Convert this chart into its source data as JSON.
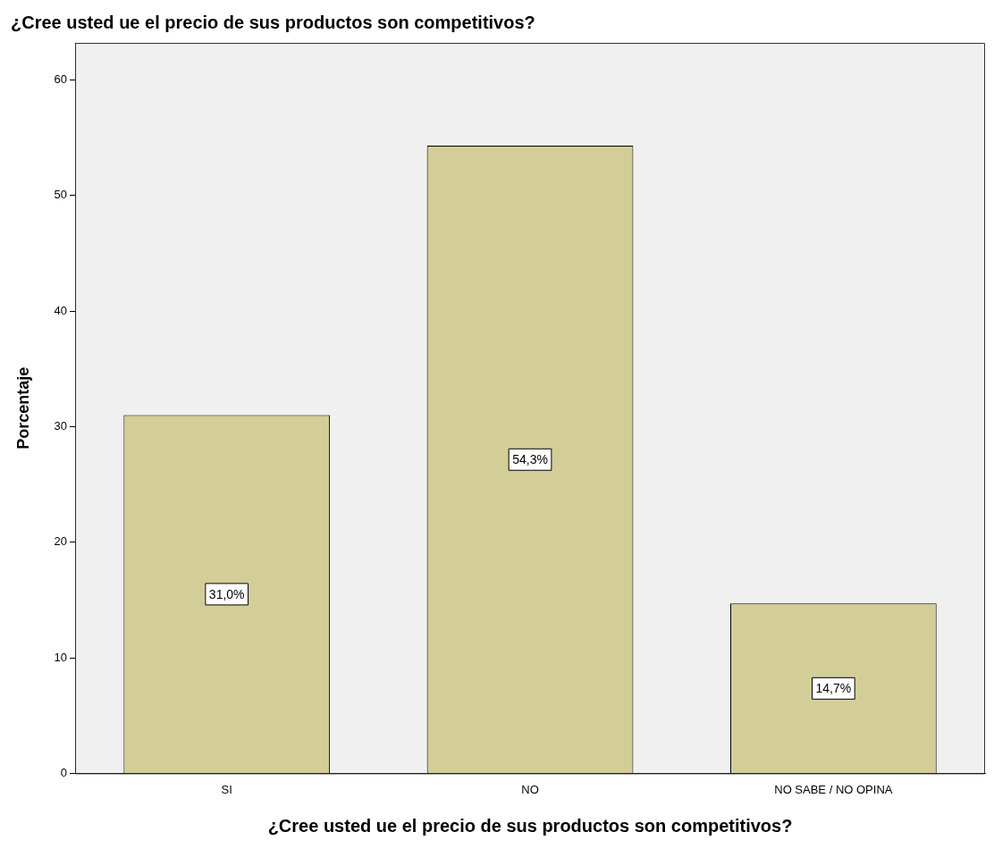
{
  "chart_data": {
    "type": "bar",
    "title": "¿Cree usted ue el precio de sus productos son competitivos?",
    "xlabel": "¿Cree usted ue el precio de sus productos son competitivos?",
    "ylabel": "Porcentaje",
    "categories": [
      "SI",
      "NO",
      "NO SABE / NO OPINA"
    ],
    "values": [
      31.0,
      54.3,
      14.7
    ],
    "value_labels": [
      "31,0%",
      "54,3%",
      "14,7%"
    ],
    "color": "#d3cd98",
    "ylim": [
      0,
      63.2
    ],
    "yticks": [
      0,
      10,
      20,
      30,
      40,
      50,
      60
    ],
    "legend": false
  }
}
